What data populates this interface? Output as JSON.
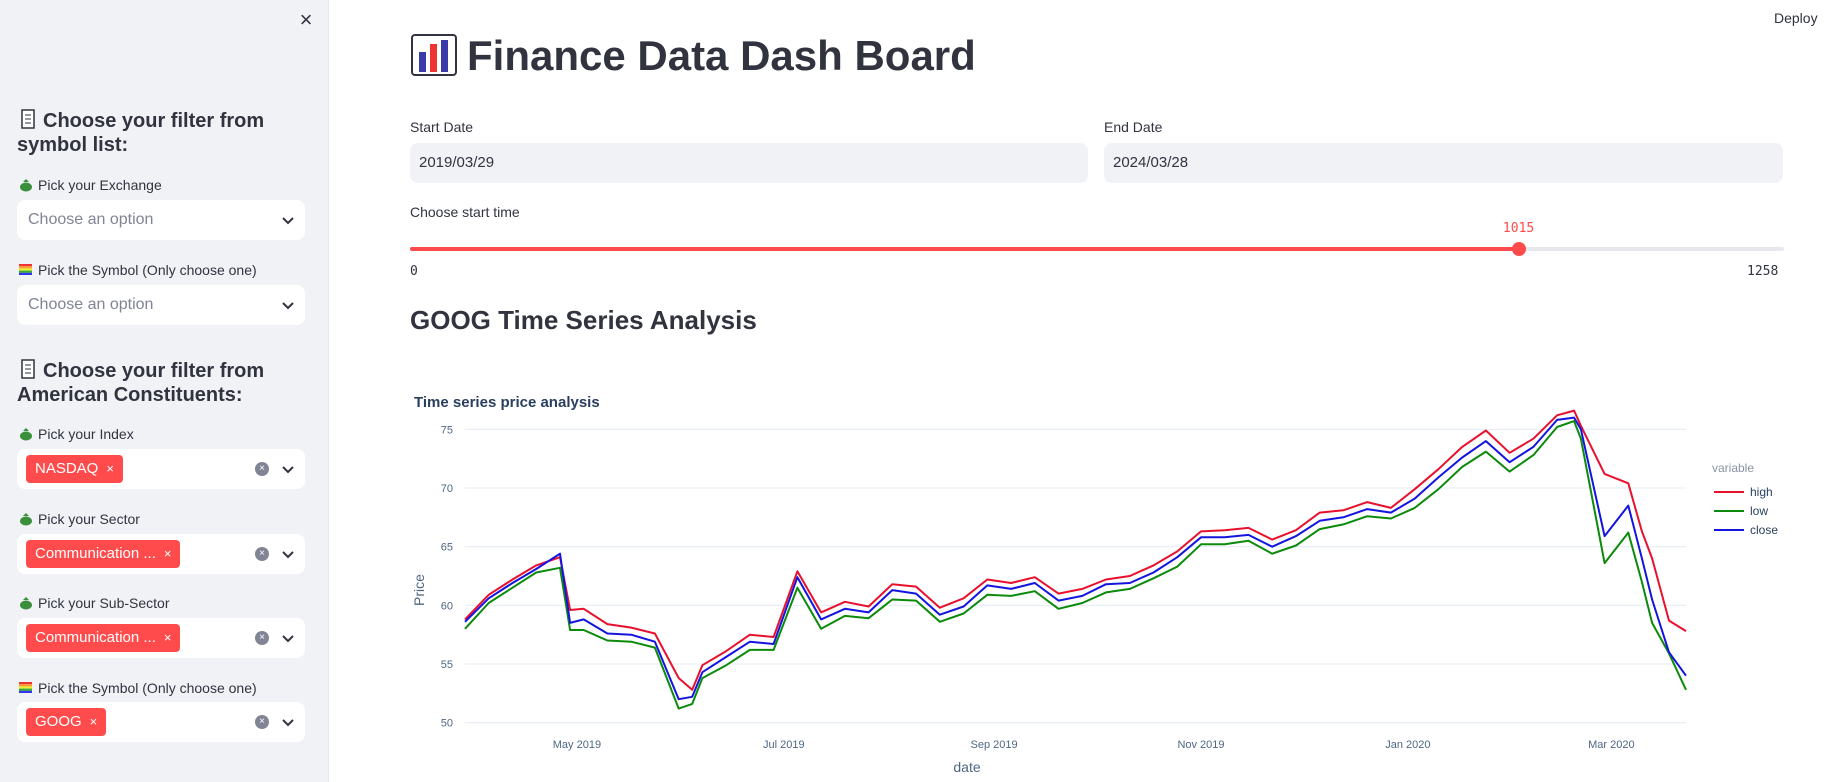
{
  "sidebar": {
    "close_glyph": "×",
    "heading1": "Choose your filter from symbol list:",
    "exchange_label": "Pick your Exchange",
    "exchange_placeholder": "Choose an option",
    "symbol_label": "Pick the Symbol (Only choose one)",
    "symbol_placeholder": "Choose an option",
    "heading2": "Choose your filter from American Constituents:",
    "index_label": "Pick your Index",
    "index_tag": "NASDAQ",
    "sector_label": "Pick your Sector",
    "sector_tag": "Communication ...",
    "subsector_label": "Pick your Sub-Sector",
    "subsector_tag": "Communication ...",
    "symbol2_label": "Pick the Symbol (Only choose one)",
    "symbol2_tag": "GOOG",
    "tag_remove": "×"
  },
  "header": {
    "deploy_label": "Deploy",
    "title": "Finance Data Dash Board"
  },
  "filters": {
    "start_date_label": "Start Date",
    "start_date_value": "2019/03/29",
    "end_date_label": "End Date",
    "end_date_value": "2024/03/28",
    "slider_label": "Choose start time",
    "slider_value": 1015,
    "slider_min": 0,
    "slider_max": 1258,
    "slider_value_text": "1015",
    "slider_min_text": "0",
    "slider_max_text": "1258"
  },
  "section_title": "GOOG Time Series Analysis",
  "colors": {
    "accent": "#ff4b4b",
    "high": "#e8112d",
    "low": "#0b8a0b",
    "close": "#1414e0"
  },
  "chart_data": {
    "type": "line",
    "title": "Time series price analysis",
    "xlabel": "date",
    "ylabel": "Price",
    "ylim": [
      49.8,
      77.5
    ],
    "xlim": [
      "2019-03-29",
      "2020-03-23"
    ],
    "yticks": [
      "75",
      "70",
      "65",
      "60",
      "55",
      "50"
    ],
    "xticks": [
      "May 2019",
      "Jul 2019",
      "Sep 2019",
      "Nov 2019",
      "Jan 2020",
      "Mar 2020"
    ],
    "legend_title": "variable",
    "legend_position": "top-right",
    "grid": true,
    "x": [
      "2019-03-29",
      "2019-04-05",
      "2019-04-12",
      "2019-04-19",
      "2019-04-26",
      "2019-04-29",
      "2019-05-03",
      "2019-05-10",
      "2019-05-17",
      "2019-05-24",
      "2019-05-31",
      "2019-06-04",
      "2019-06-07",
      "2019-06-14",
      "2019-06-21",
      "2019-06-28",
      "2019-07-05",
      "2019-07-12",
      "2019-07-19",
      "2019-07-26",
      "2019-08-02",
      "2019-08-09",
      "2019-08-16",
      "2019-08-23",
      "2019-08-30",
      "2019-09-06",
      "2019-09-13",
      "2019-09-20",
      "2019-09-27",
      "2019-10-04",
      "2019-10-11",
      "2019-10-18",
      "2019-10-25",
      "2019-11-01",
      "2019-11-08",
      "2019-11-15",
      "2019-11-22",
      "2019-11-29",
      "2019-12-06",
      "2019-12-13",
      "2019-12-20",
      "2019-12-27",
      "2020-01-03",
      "2020-01-10",
      "2020-01-17",
      "2020-01-24",
      "2020-01-31",
      "2020-02-07",
      "2020-02-14",
      "2020-02-19",
      "2020-02-21",
      "2020-02-28",
      "2020-03-06",
      "2020-03-10",
      "2020-03-13",
      "2020-03-18",
      "2020-03-23"
    ],
    "series": [
      {
        "name": "high",
        "values": [
          58.8,
          60.9,
          62.2,
          63.4,
          64.1,
          59.6,
          59.7,
          58.4,
          58.1,
          57.6,
          53.8,
          52.8,
          54.9,
          56.1,
          57.5,
          57.3,
          62.9,
          59.4,
          60.3,
          59.9,
          61.8,
          61.6,
          59.8,
          60.6,
          62.2,
          61.9,
          62.4,
          61.0,
          61.4,
          62.2,
          62.5,
          63.4,
          64.6,
          66.3,
          66.4,
          66.6,
          65.6,
          66.4,
          67.9,
          68.1,
          68.8,
          68.3,
          69.9,
          71.6,
          73.5,
          74.9,
          73.0,
          74.2,
          76.2,
          76.6,
          75.3,
          71.2,
          70.4,
          66.3,
          64.0,
          58.7,
          57.8
        ]
      },
      {
        "name": "low",
        "values": [
          58.0,
          60.2,
          61.5,
          62.8,
          63.2,
          57.9,
          57.9,
          57.0,
          56.9,
          56.4,
          51.2,
          51.6,
          53.8,
          54.9,
          56.2,
          56.2,
          61.5,
          58.0,
          59.1,
          58.9,
          60.5,
          60.4,
          58.6,
          59.3,
          60.9,
          60.8,
          61.2,
          59.7,
          60.2,
          61.1,
          61.4,
          62.3,
          63.3,
          65.2,
          65.2,
          65.5,
          64.4,
          65.1,
          66.5,
          66.9,
          67.6,
          67.4,
          68.3,
          69.9,
          71.8,
          73.1,
          71.4,
          72.8,
          75.2,
          75.7,
          74.2,
          63.6,
          66.2,
          62.0,
          58.5,
          55.9,
          52.8
        ]
      },
      {
        "name": "close",
        "values": [
          58.6,
          60.6,
          61.9,
          63.1,
          64.4,
          58.5,
          58.8,
          57.6,
          57.5,
          56.9,
          52.0,
          52.2,
          54.3,
          55.6,
          56.9,
          56.7,
          62.4,
          58.8,
          59.7,
          59.4,
          61.3,
          61.0,
          59.2,
          59.9,
          61.7,
          61.4,
          61.9,
          60.4,
          60.8,
          61.8,
          61.9,
          62.8,
          64.1,
          65.8,
          65.8,
          66.0,
          65.0,
          65.9,
          67.2,
          67.5,
          68.2,
          67.9,
          69.1,
          70.9,
          72.6,
          74.0,
          72.2,
          73.5,
          75.8,
          76.0,
          75.0,
          65.9,
          68.5,
          64.0,
          60.5,
          56.0,
          54.0
        ]
      }
    ]
  }
}
